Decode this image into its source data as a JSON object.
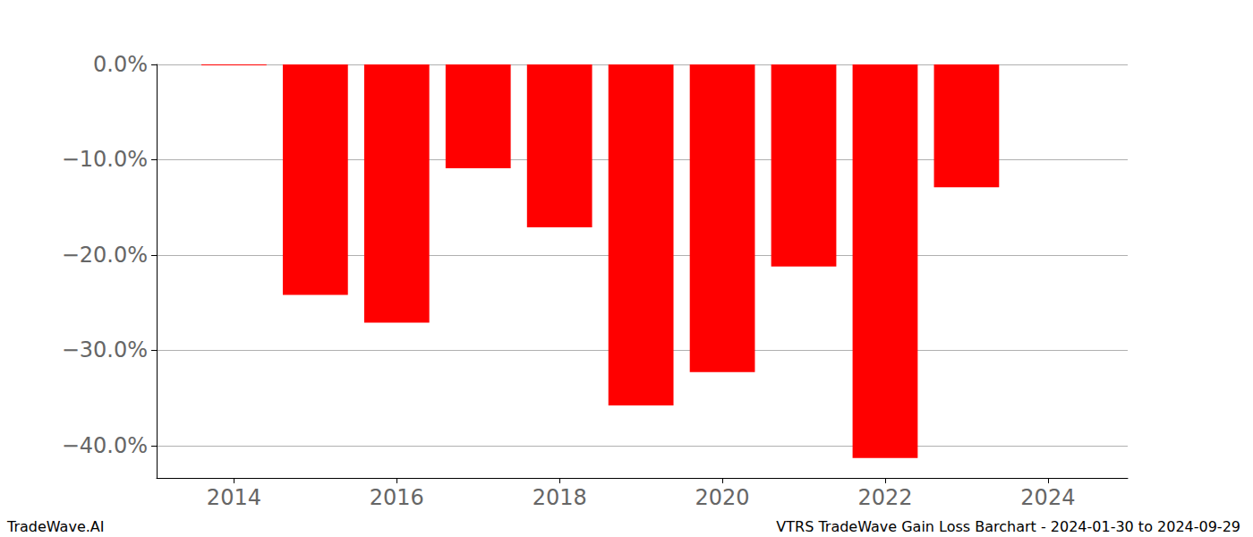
{
  "chart_data": {
    "type": "bar",
    "title": "VTRS TradeWave Gain Loss Barchart - 2024-01-30 to 2024-09-29",
    "annotations": [
      "TradeWave.AI"
    ],
    "x": [
      2014,
      2015,
      2016,
      2017,
      2018,
      2019,
      2020,
      2021,
      2022,
      2023
    ],
    "values": [
      -0.1,
      -24.2,
      -27.1,
      -10.9,
      -17.1,
      -35.8,
      -32.3,
      -21.2,
      -41.3,
      -12.9
    ],
    "color": "#ff0000",
    "xlim": [
      2013.05,
      2024.98
    ],
    "xticks": [
      2014,
      2016,
      2018,
      2020,
      2022,
      2024
    ],
    "ylim": [
      -43.4,
      0
    ],
    "yticks": [
      {
        "value": -40,
        "label": "−40.0%"
      },
      {
        "value": -30,
        "label": "−30.0%"
      },
      {
        "value": -20,
        "label": "−20.0%"
      },
      {
        "value": -10,
        "label": "−10.0%"
      },
      {
        "value": 0,
        "label": "0.0%"
      }
    ],
    "grid": true
  }
}
